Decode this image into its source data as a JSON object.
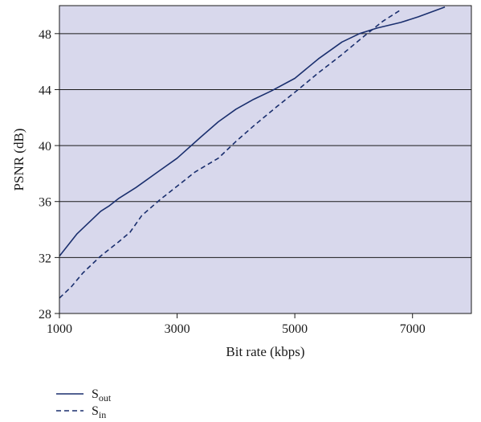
{
  "chart_data": {
    "type": "line",
    "title": "",
    "xlabel": "Bit rate (kbps)",
    "ylabel": "PSNR (dB)",
    "xlim": [
      1000,
      8000
    ],
    "ylim": [
      28,
      50
    ],
    "xticks": [
      1000,
      3000,
      5000,
      7000
    ],
    "yticks": [
      28,
      32,
      36,
      40,
      44,
      48
    ],
    "grid": "horizontal",
    "background_color": "#d8d8ec",
    "line_color": "#1a2f6e",
    "legend_position": "bottom-left, below chart",
    "series": [
      {
        "name_main": "S",
        "name_sub": "out",
        "style": "solid",
        "x": [
          1000,
          1300,
          1700,
          1850,
          2000,
          2300,
          2700,
          3000,
          3400,
          3700,
          4000,
          4300,
          4600,
          5000,
          5400,
          5800,
          6100,
          6400,
          6800,
          7100,
          7550
        ],
        "y": [
          32.1,
          33.7,
          35.3,
          35.7,
          36.2,
          37.0,
          38.2,
          39.1,
          40.6,
          41.7,
          42.6,
          43.3,
          43.9,
          44.8,
          46.2,
          47.4,
          48.0,
          48.4,
          48.8,
          49.2,
          49.9
        ]
      },
      {
        "name_main": "S",
        "name_sub": "in",
        "style": "dashed",
        "x": [
          1000,
          1200,
          1400,
          1700,
          2000,
          2200,
          2400,
          2700,
          3000,
          3300,
          3500,
          3700,
          4000,
          4300,
          4700,
          5000,
          5400,
          5800,
          6200,
          6500,
          6800
        ],
        "y": [
          29.1,
          29.9,
          30.9,
          32.1,
          33.1,
          33.8,
          35.0,
          36.1,
          37.1,
          38.1,
          38.6,
          39.1,
          40.3,
          41.4,
          42.8,
          43.8,
          45.2,
          46.5,
          47.9,
          48.9,
          49.7
        ]
      }
    ]
  }
}
